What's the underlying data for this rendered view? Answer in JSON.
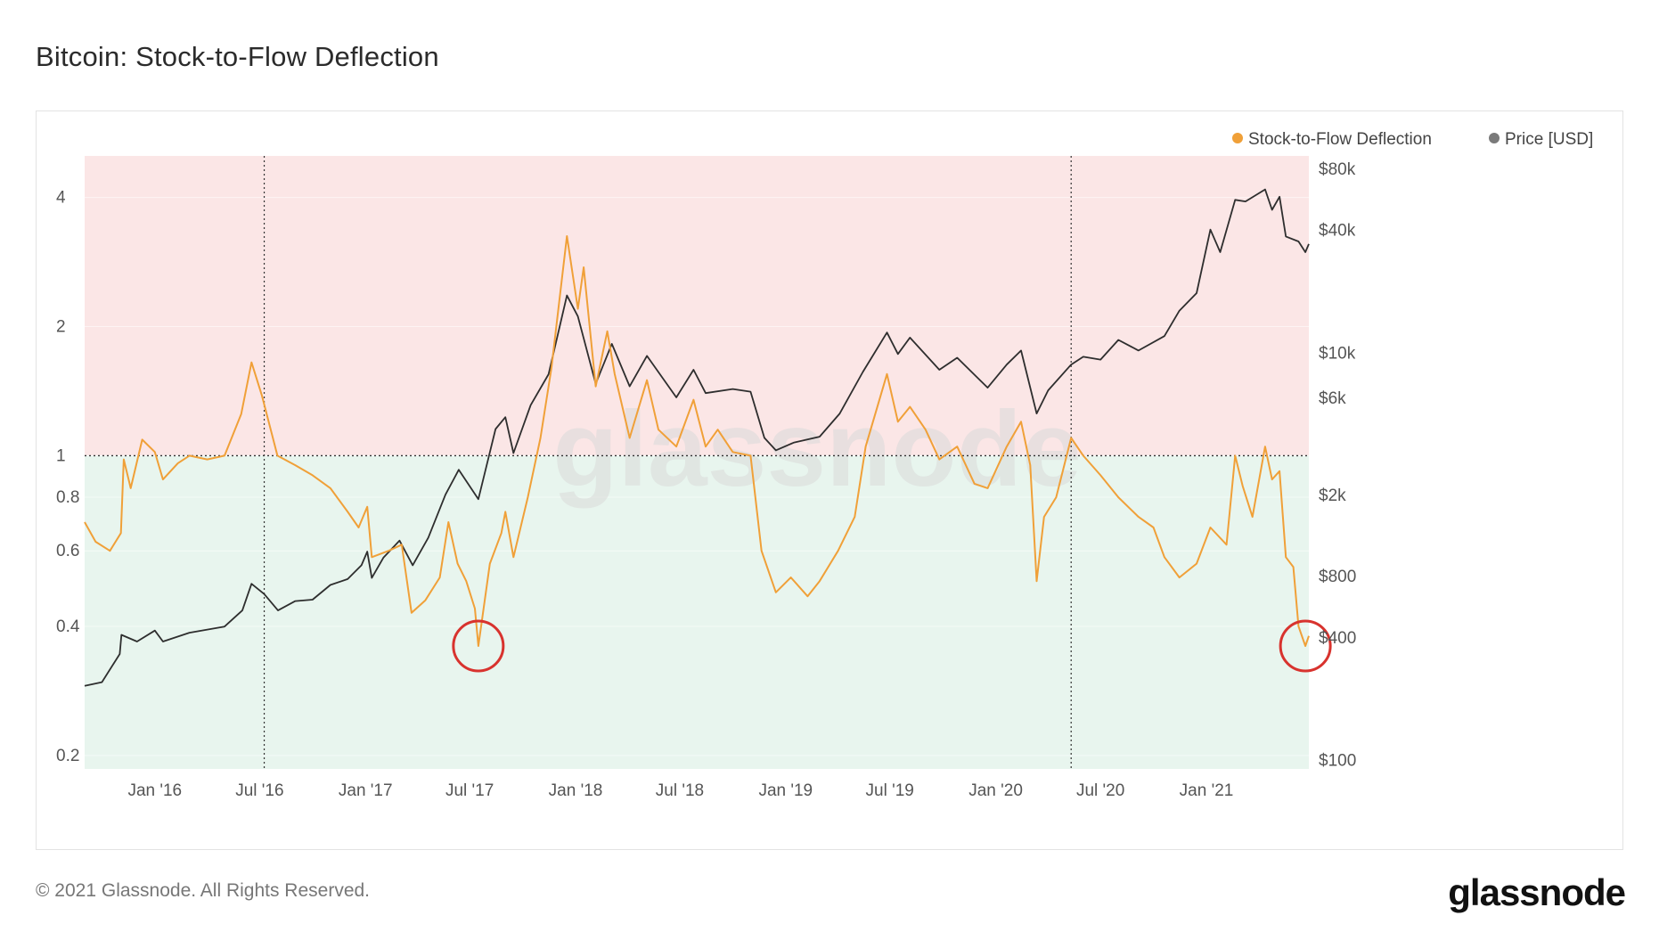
{
  "title": "Bitcoin: Stock-to-Flow Deflection",
  "footer": {
    "copyright": "© 2021 Glassnode. All Rights Reserved."
  },
  "brand": {
    "logo_text": "glassnode",
    "watermark": "glassnode"
  },
  "colors": {
    "deflection": "#F0A038",
    "price": "#2E2E2E",
    "overvalued_zone": "#FBE6E6",
    "undervalued_zone": "#E8F5EE",
    "highlight_circle": "#D8332E"
  },
  "legend": {
    "deflection": "Stock-to-Flow Deflection",
    "price": "Price [USD]"
  },
  "chart_data": {
    "type": "line",
    "title": "Bitcoin: Stock-to-Flow Deflection",
    "x_type": "date",
    "x_range": [
      "2015-09-01",
      "2021-06-28"
    ],
    "x_ticks": [
      {
        "date": "2016-01-01",
        "label": "Jan '16"
      },
      {
        "date": "2016-07-01",
        "label": "Jul '16"
      },
      {
        "date": "2017-01-01",
        "label": "Jan '17"
      },
      {
        "date": "2017-07-01",
        "label": "Jul '17"
      },
      {
        "date": "2018-01-01",
        "label": "Jan '18"
      },
      {
        "date": "2018-07-01",
        "label": "Jul '18"
      },
      {
        "date": "2019-01-01",
        "label": "Jan '19"
      },
      {
        "date": "2019-07-01",
        "label": "Jul '19"
      },
      {
        "date": "2020-01-01",
        "label": "Jan '20"
      },
      {
        "date": "2020-07-01",
        "label": "Jul '20"
      },
      {
        "date": "2021-01-01",
        "label": "Jan '21"
      }
    ],
    "y_left": {
      "scale": "log",
      "range": [
        0.186,
        5.0
      ],
      "ticks": [
        {
          "value": 0.2,
          "label": "0.2"
        },
        {
          "value": 0.4,
          "label": "0.4"
        },
        {
          "value": 0.6,
          "label": "0.6"
        },
        {
          "value": 0.8,
          "label": "0.8"
        },
        {
          "value": 1,
          "label": "1"
        },
        {
          "value": 2,
          "label": "2"
        },
        {
          "value": 4,
          "label": "4"
        }
      ]
    },
    "y_right": {
      "scale": "log",
      "range": [
        90,
        92000
      ],
      "ticks": [
        {
          "value": 100,
          "label": "$100"
        },
        {
          "value": 400,
          "label": "$400"
        },
        {
          "value": 800,
          "label": "$800"
        },
        {
          "value": 2000,
          "label": "$2k"
        },
        {
          "value": 6000,
          "label": "$6k"
        },
        {
          "value": 10000,
          "label": "$10k"
        },
        {
          "value": 40000,
          "label": "$40k"
        },
        {
          "value": 80000,
          "label": "$80k"
        }
      ]
    },
    "reference_line": 1,
    "vertical_markers": [
      "2016-07-09",
      "2020-05-11"
    ],
    "highlight_markers": [
      {
        "date": "2017-07-16",
        "value": 0.36
      },
      {
        "date": "2021-06-22",
        "value": 0.36
      }
    ],
    "series": [
      {
        "name": "Stock-to-Flow Deflection",
        "axis": "left",
        "points": [
          [
            "2015-09-01",
            0.7
          ],
          [
            "2015-09-20",
            0.63
          ],
          [
            "2015-10-15",
            0.6
          ],
          [
            "2015-11-03",
            0.66
          ],
          [
            "2015-11-08",
            0.98
          ],
          [
            "2015-11-20",
            0.84
          ],
          [
            "2015-12-10",
            1.09
          ],
          [
            "2016-01-01",
            1.02
          ],
          [
            "2016-01-15",
            0.88
          ],
          [
            "2016-02-10",
            0.96
          ],
          [
            "2016-03-01",
            1.0
          ],
          [
            "2016-04-01",
            0.98
          ],
          [
            "2016-05-01",
            1.0
          ],
          [
            "2016-05-30",
            1.25
          ],
          [
            "2016-06-17",
            1.65
          ],
          [
            "2016-07-05",
            1.38
          ],
          [
            "2016-08-01",
            1.0
          ],
          [
            "2016-09-01",
            0.95
          ],
          [
            "2016-10-01",
            0.9
          ],
          [
            "2016-11-01",
            0.84
          ],
          [
            "2016-12-01",
            0.74
          ],
          [
            "2016-12-20",
            0.68
          ],
          [
            "2017-01-04",
            0.76
          ],
          [
            "2017-01-12",
            0.58
          ],
          [
            "2017-02-10",
            0.6
          ],
          [
            "2017-03-05",
            0.62
          ],
          [
            "2017-03-22",
            0.43
          ],
          [
            "2017-04-15",
            0.46
          ],
          [
            "2017-05-10",
            0.52
          ],
          [
            "2017-05-25",
            0.7
          ],
          [
            "2017-06-10",
            0.56
          ],
          [
            "2017-06-25",
            0.51
          ],
          [
            "2017-07-10",
            0.44
          ],
          [
            "2017-07-16",
            0.36
          ],
          [
            "2017-08-05",
            0.56
          ],
          [
            "2017-08-25",
            0.66
          ],
          [
            "2017-09-01",
            0.74
          ],
          [
            "2017-09-15",
            0.58
          ],
          [
            "2017-10-10",
            0.8
          ],
          [
            "2017-11-01",
            1.1
          ],
          [
            "2017-11-20",
            1.6
          ],
          [
            "2017-12-17",
            3.25
          ],
          [
            "2018-01-05",
            2.2
          ],
          [
            "2018-01-15",
            2.75
          ],
          [
            "2018-02-05",
            1.45
          ],
          [
            "2018-02-25",
            1.95
          ],
          [
            "2018-03-10",
            1.55
          ],
          [
            "2018-04-05",
            1.1
          ],
          [
            "2018-05-05",
            1.5
          ],
          [
            "2018-05-25",
            1.15
          ],
          [
            "2018-06-25",
            1.05
          ],
          [
            "2018-07-25",
            1.35
          ],
          [
            "2018-08-15",
            1.05
          ],
          [
            "2018-09-05",
            1.15
          ],
          [
            "2018-10-01",
            1.02
          ],
          [
            "2018-11-01",
            1.0
          ],
          [
            "2018-11-20",
            0.6
          ],
          [
            "2018-12-15",
            0.48
          ],
          [
            "2019-01-10",
            0.52
          ],
          [
            "2019-02-08",
            0.47
          ],
          [
            "2019-03-01",
            0.51
          ],
          [
            "2019-04-02",
            0.6
          ],
          [
            "2019-05-01",
            0.72
          ],
          [
            "2019-05-20",
            1.05
          ],
          [
            "2019-06-26",
            1.55
          ],
          [
            "2019-07-15",
            1.2
          ],
          [
            "2019-08-05",
            1.3
          ],
          [
            "2019-09-01",
            1.15
          ],
          [
            "2019-09-25",
            0.98
          ],
          [
            "2019-10-26",
            1.05
          ],
          [
            "2019-11-25",
            0.86
          ],
          [
            "2019-12-18",
            0.84
          ],
          [
            "2020-01-20",
            1.05
          ],
          [
            "2020-02-14",
            1.2
          ],
          [
            "2020-03-01",
            0.95
          ],
          [
            "2020-03-12",
            0.51
          ],
          [
            "2020-03-25",
            0.72
          ],
          [
            "2020-04-15",
            0.8
          ],
          [
            "2020-05-11",
            1.1
          ],
          [
            "2020-06-01",
            1.0
          ],
          [
            "2020-07-01",
            0.9
          ],
          [
            "2020-08-01",
            0.8
          ],
          [
            "2020-09-05",
            0.72
          ],
          [
            "2020-10-01",
            0.68
          ],
          [
            "2020-10-20",
            0.58
          ],
          [
            "2020-11-15",
            0.52
          ],
          [
            "2020-12-15",
            0.56
          ],
          [
            "2021-01-08",
            0.68
          ],
          [
            "2021-02-05",
            0.62
          ],
          [
            "2021-02-20",
            1.0
          ],
          [
            "2021-03-05",
            0.85
          ],
          [
            "2021-03-22",
            0.72
          ],
          [
            "2021-04-13",
            1.05
          ],
          [
            "2021-04-25",
            0.88
          ],
          [
            "2021-05-08",
            0.92
          ],
          [
            "2021-05-19",
            0.58
          ],
          [
            "2021-06-01",
            0.55
          ],
          [
            "2021-06-10",
            0.4
          ],
          [
            "2021-06-22",
            0.36
          ],
          [
            "2021-06-28",
            0.38
          ]
        ]
      },
      {
        "name": "Price [USD]",
        "axis": "right",
        "points": [
          [
            "2015-09-01",
            230
          ],
          [
            "2015-10-01",
            240
          ],
          [
            "2015-11-01",
            330
          ],
          [
            "2015-11-04",
            410
          ],
          [
            "2015-12-01",
            380
          ],
          [
            "2016-01-01",
            430
          ],
          [
            "2016-01-15",
            380
          ],
          [
            "2016-03-01",
            420
          ],
          [
            "2016-05-01",
            450
          ],
          [
            "2016-06-01",
            540
          ],
          [
            "2016-06-17",
            730
          ],
          [
            "2016-07-09",
            650
          ],
          [
            "2016-08-02",
            540
          ],
          [
            "2016-09-01",
            600
          ],
          [
            "2016-10-01",
            610
          ],
          [
            "2016-11-01",
            720
          ],
          [
            "2016-12-01",
            770
          ],
          [
            "2016-12-25",
            900
          ],
          [
            "2017-01-04",
            1050
          ],
          [
            "2017-01-12",
            780
          ],
          [
            "2017-02-01",
            980
          ],
          [
            "2017-03-01",
            1190
          ],
          [
            "2017-03-24",
            900
          ],
          [
            "2017-04-20",
            1230
          ],
          [
            "2017-05-20",
            2000
          ],
          [
            "2017-06-12",
            2650
          ],
          [
            "2017-07-16",
            1900
          ],
          [
            "2017-08-15",
            4200
          ],
          [
            "2017-09-01",
            4800
          ],
          [
            "2017-09-15",
            3200
          ],
          [
            "2017-10-15",
            5500
          ],
          [
            "2017-11-15",
            7800
          ],
          [
            "2017-12-17",
            19000
          ],
          [
            "2018-01-05",
            15000
          ],
          [
            "2018-02-05",
            7000
          ],
          [
            "2018-03-05",
            11000
          ],
          [
            "2018-04-05",
            6800
          ],
          [
            "2018-05-05",
            9600
          ],
          [
            "2018-06-25",
            6000
          ],
          [
            "2018-07-25",
            8200
          ],
          [
            "2018-08-15",
            6300
          ],
          [
            "2018-10-01",
            6600
          ],
          [
            "2018-11-01",
            6400
          ],
          [
            "2018-11-25",
            3800
          ],
          [
            "2018-12-15",
            3300
          ],
          [
            "2019-01-15",
            3600
          ],
          [
            "2019-03-01",
            3850
          ],
          [
            "2019-04-05",
            5000
          ],
          [
            "2019-05-15",
            8000
          ],
          [
            "2019-06-26",
            12500
          ],
          [
            "2019-07-15",
            9800
          ],
          [
            "2019-08-05",
            11800
          ],
          [
            "2019-09-25",
            8200
          ],
          [
            "2019-10-26",
            9400
          ],
          [
            "2019-12-18",
            6700
          ],
          [
            "2020-01-20",
            8700
          ],
          [
            "2020-02-14",
            10200
          ],
          [
            "2020-03-12",
            5000
          ],
          [
            "2020-04-01",
            6500
          ],
          [
            "2020-05-11",
            8700
          ],
          [
            "2020-06-01",
            9500
          ],
          [
            "2020-07-01",
            9200
          ],
          [
            "2020-08-01",
            11500
          ],
          [
            "2020-09-05",
            10200
          ],
          [
            "2020-10-20",
            12000
          ],
          [
            "2020-11-15",
            16000
          ],
          [
            "2020-12-15",
            19500
          ],
          [
            "2021-01-08",
            40000
          ],
          [
            "2021-01-25",
            31000
          ],
          [
            "2021-02-20",
            56000
          ],
          [
            "2021-03-10",
            55000
          ],
          [
            "2021-04-13",
            63000
          ],
          [
            "2021-04-25",
            50000
          ],
          [
            "2021-05-08",
            58000
          ],
          [
            "2021-05-19",
            37000
          ],
          [
            "2021-06-10",
            35000
          ],
          [
            "2021-06-22",
            31000
          ],
          [
            "2021-06-28",
            34000
          ]
        ]
      }
    ]
  }
}
